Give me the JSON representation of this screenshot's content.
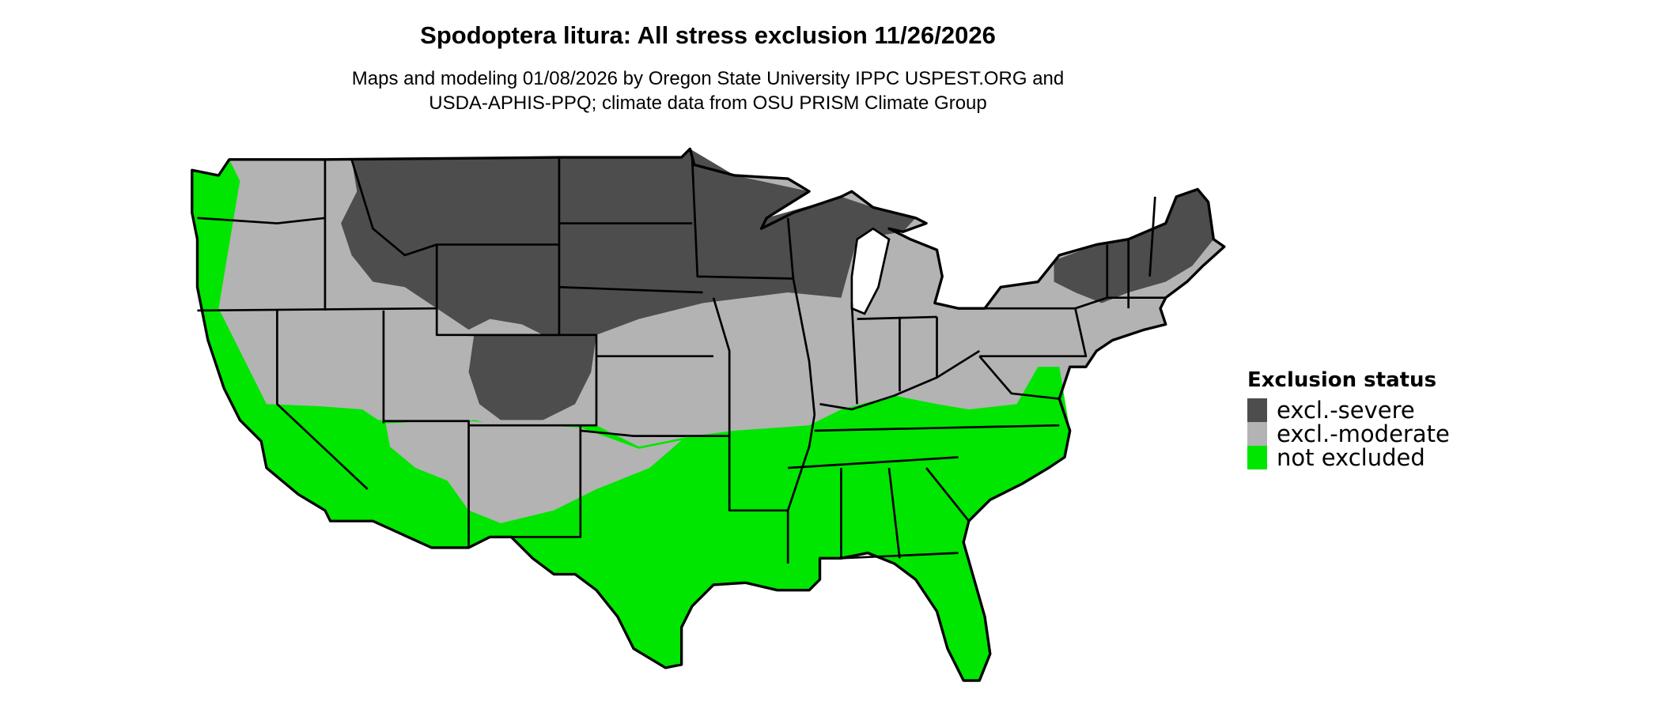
{
  "title": "Spodoptera litura: All stress exclusion 11/26/2026",
  "subtitle_lines": [
    "Maps and modeling 01/08/2026 by Oregon State University IPPC USPEST.ORG and",
    "USDA-APHIS-PPQ; climate data from OSU PRISM Climate Group"
  ],
  "legend": {
    "title": "Exclusion status",
    "items": [
      {
        "label": "excl.-severe",
        "color": "#4d4d4d"
      },
      {
        "label": "excl.-moderate",
        "color": "#b3b3b3"
      },
      {
        "label": "not excluded",
        "color": "#00e600"
      }
    ]
  },
  "map": {
    "region": "Contiguous United States",
    "border_color": "#000000",
    "water_color": "#ffffff"
  }
}
